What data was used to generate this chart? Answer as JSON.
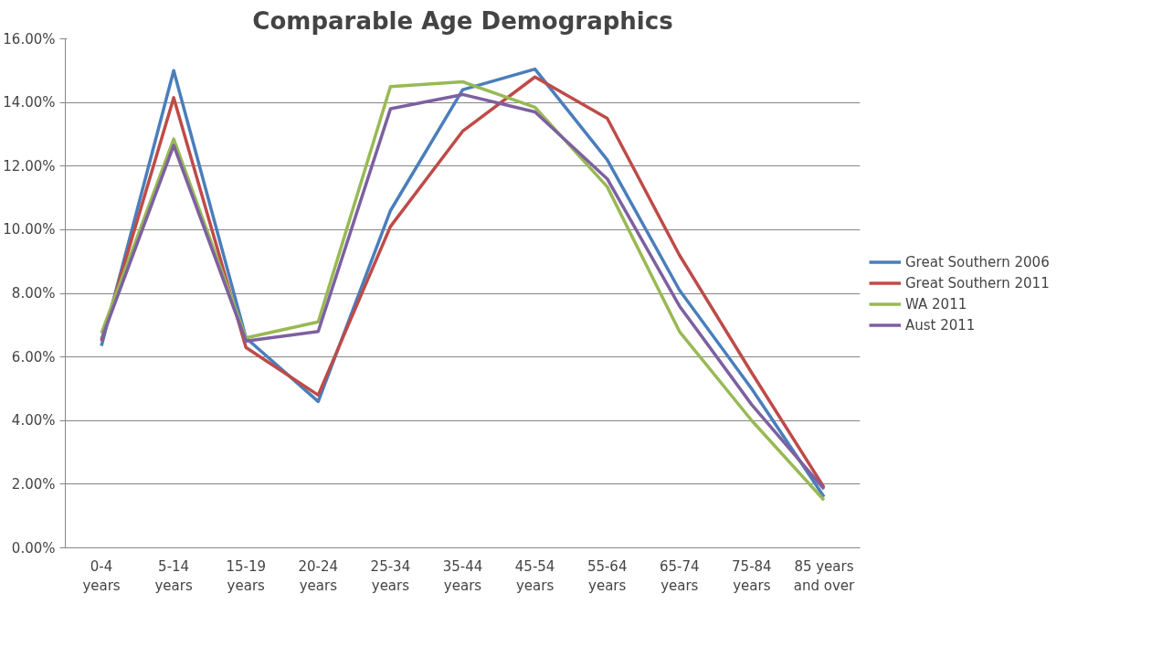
{
  "chart_data": {
    "type": "line",
    "title": "Comparable Age Demographics",
    "categories": [
      "0-4\nyears",
      "5-14\nyears",
      "15-19\nyears",
      "20-24\nyears",
      "25-34\nyears",
      "35-44\nyears",
      "45-54\nyears",
      "55-64\nyears",
      "65-74\nyears",
      "75-84\nyears",
      "85 years\nand over"
    ],
    "series": [
      {
        "name": "Great Southern 2006",
        "color": "#4a7ebb",
        "values": [
          6.35,
          15.0,
          6.6,
          4.6,
          10.6,
          14.4,
          15.05,
          12.2,
          8.1,
          5.0,
          1.6
        ]
      },
      {
        "name": "Great Southern 2011",
        "color": "#be4b48",
        "values": [
          6.5,
          14.15,
          6.3,
          4.8,
          10.1,
          13.1,
          14.8,
          13.5,
          9.2,
          5.5,
          1.9
        ]
      },
      {
        "name": "WA 2011",
        "color": "#98b954",
        "values": [
          6.75,
          12.85,
          6.6,
          7.1,
          14.5,
          14.65,
          13.85,
          11.35,
          6.8,
          4.0,
          1.5
        ]
      },
      {
        "name": "Aust 2011",
        "color": "#7d60a0",
        "values": [
          6.55,
          12.65,
          6.5,
          6.8,
          13.8,
          14.25,
          13.7,
          11.6,
          7.6,
          4.5,
          1.85
        ]
      }
    ],
    "ylim": [
      0,
      16
    ],
    "yticks": [
      {
        "value": 0,
        "label": "0.00%"
      },
      {
        "value": 2,
        "label": "2.00%"
      },
      {
        "value": 4,
        "label": "4.00%"
      },
      {
        "value": 6,
        "label": "6.00%"
      },
      {
        "value": 8,
        "label": "8.00%"
      },
      {
        "value": 10,
        "label": "10.00%"
      },
      {
        "value": 12,
        "label": "12.00%"
      },
      {
        "value": 14,
        "label": "14.00%"
      },
      {
        "value": 16,
        "label": "16.00%"
      }
    ],
    "grid": "y",
    "legend": "right",
    "marker": "none",
    "line_style": "solid"
  }
}
